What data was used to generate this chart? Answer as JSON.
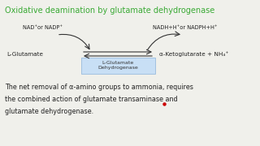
{
  "title": "Oxidative deamination by glutamate dehydrogenase",
  "title_color": "#3aaa35",
  "bg_color": "#f0f0eb",
  "left_label": "L-Glutamate",
  "right_label": "α-Ketoglutarate + NH₄⁺",
  "enzyme_label": "L-Glutamate\nDehydrogenase",
  "enzyme_box_color": "#c8dff5",
  "enzyme_box_edge": "#99bbdd",
  "top_left_label": "NAD⁺or NADP⁺",
  "top_right_label": "NADH+H⁺or NADPH+H⁺",
  "body_line1": "The net removal of α-amino groups to ammonia, requires",
  "body_line2": "the combined action of glutamate transaminase and",
  "body_line3": "glutamate dehydrogenase.",
  "text_color": "#222222",
  "arrow_color": "#333333",
  "red_dot_color": "#cc0000",
  "title_fontsize": 7.0,
  "label_fontsize": 5.2,
  "enzyme_fontsize": 4.5,
  "body_fontsize": 5.8
}
